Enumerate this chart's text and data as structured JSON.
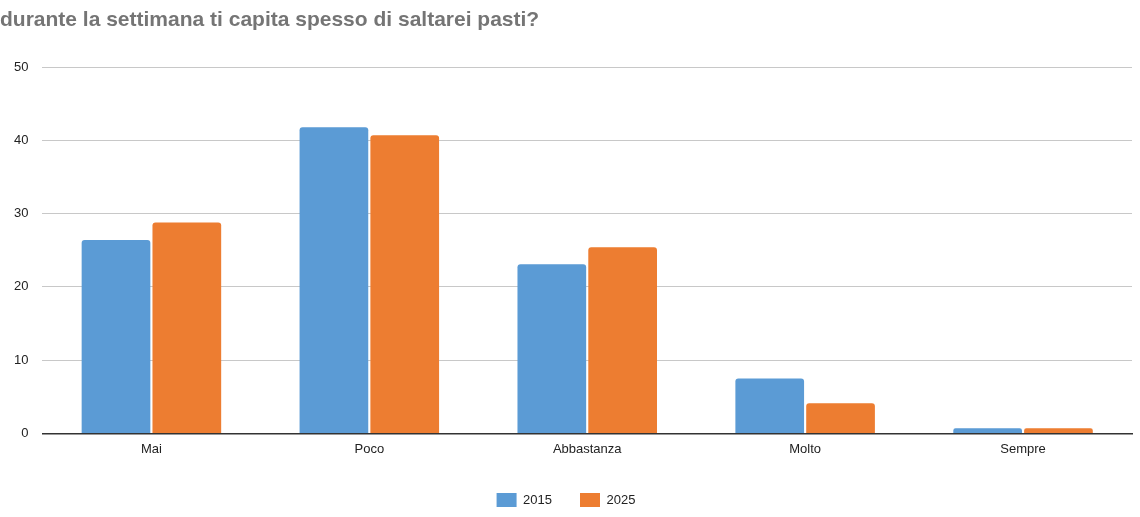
{
  "chart_data": {
    "type": "bar",
    "title": "durante la settimana ti capita spesso di saltarei pasti?",
    "categories": [
      "Mai",
      "Poco",
      "Abbastanza",
      "Molto",
      "Sempre"
    ],
    "series": [
      {
        "name": "2015",
        "color": "#5b9bd5",
        "values": [
          26.4,
          41.8,
          23.1,
          7.5,
          0.7
        ]
      },
      {
        "name": "2025",
        "color": "#ed7d31",
        "values": [
          28.8,
          40.7,
          25.4,
          4.1,
          0.7
        ]
      }
    ],
    "ylim": [
      0,
      50
    ],
    "yticks": [
      0,
      10,
      20,
      30,
      40,
      50
    ],
    "grid": "y",
    "legend": "bottom"
  }
}
